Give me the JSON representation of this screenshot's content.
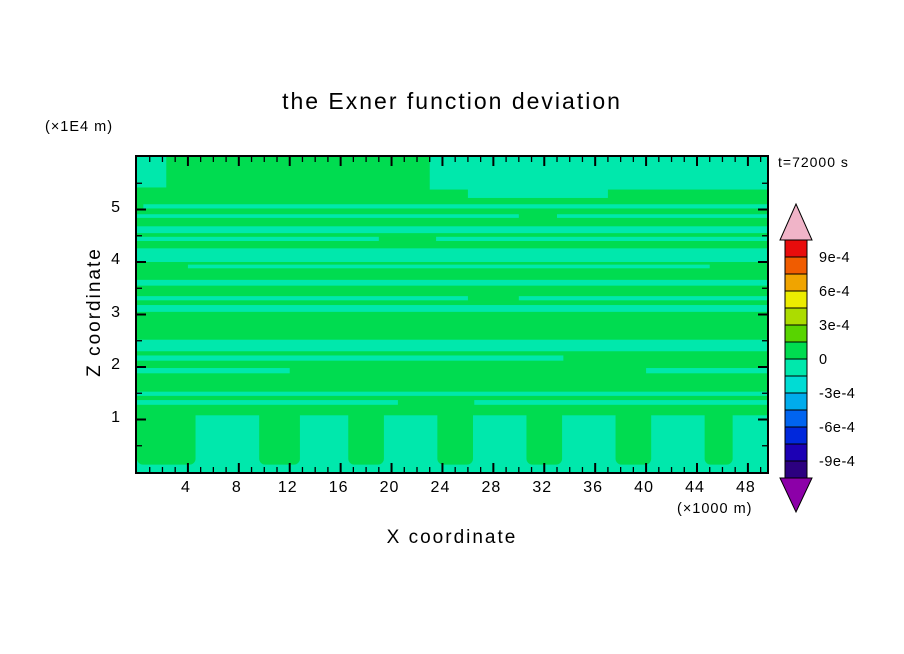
{
  "title": "the Exner function deviation",
  "time_label": "t=72000 s",
  "y_unit_label": "(×1E4 m)",
  "x_unit_label": "(×1000 m)",
  "x_axis_label": "X coordinate",
  "y_axis_label": "Z coordinate",
  "chart_data": {
    "type": "heatmap",
    "subtype": "filled-contour",
    "title": "the Exner function deviation",
    "time_annotation": "t=72000 s",
    "xlabel": "X coordinate",
    "ylabel": "Z coordinate",
    "x_unit": "×1000 m",
    "y_unit": "×1E4 m",
    "xlim": [
      0,
      49.5
    ],
    "ylim": [
      0,
      6
    ],
    "x_ticks": [
      4,
      8,
      12,
      16,
      20,
      24,
      28,
      32,
      36,
      40,
      44,
      48
    ],
    "y_ticks": [
      1,
      2,
      3,
      4,
      5
    ],
    "grid": false,
    "legend_position": "right-colorbar",
    "contour_interval": 0.00015,
    "field_note": "Exner function deviation is everywhere within -1.5e-4 .. +1.5e-4: green areas are the 0..+1.5e-4 band, mint areas are the -1.5e-4..0 band (horizontal wave layers aloft and a negative boundary layer below z=1 broken by positive columns).",
    "colors": {
      "positive": "#00dc50",
      "negative": "#00e8ac",
      "frame": "#000000",
      "background": "#ffffff"
    },
    "colorbar": {
      "labels": [
        "9e-4",
        "6e-4",
        "3e-4",
        "0",
        "-3e-4",
        "-6e-4",
        "-9e-4"
      ],
      "label_values": [
        0.0009,
        0.0006,
        0.0003,
        0,
        -0.0003,
        -0.0006,
        -0.0009
      ],
      "band_colors_top_to_bottom": [
        "#e80c0c",
        "#f05c00",
        "#f0a400",
        "#ecec00",
        "#acdc00",
        "#58d400",
        "#00dc50",
        "#00e8ac",
        "#00dcd4",
        "#00acec",
        "#0064f0",
        "#0028dc",
        "#1c00b4",
        "#2c0080"
      ],
      "arrow_top_color": "#f0b4c8",
      "arrow_bottom_color": "#8c00a8"
    },
    "negative_regions": [
      {
        "x0": 0,
        "x1": 2.3,
        "z0": 5.42,
        "z1": 6.0
      },
      {
        "x0": 23,
        "x1": 49.5,
        "z0": 5.38,
        "z1": 6.0
      },
      {
        "x0": 26,
        "x1": 37,
        "z0": 5.22,
        "z1": 5.45
      },
      {
        "x0": 0.5,
        "x1": 49.5,
        "z0": 5.02,
        "z1": 5.1
      },
      {
        "x0": 0,
        "x1": 30,
        "z0": 4.84,
        "z1": 4.91
      },
      {
        "x0": 33,
        "x1": 49.5,
        "z0": 4.84,
        "z1": 4.91
      },
      {
        "x0": 0,
        "x1": 49.5,
        "z0": 4.55,
        "z1": 4.68
      },
      {
        "x0": 0,
        "x1": 19,
        "z0": 4.4,
        "z1": 4.48
      },
      {
        "x0": 23.5,
        "x1": 49.5,
        "z0": 4.4,
        "z1": 4.48
      },
      {
        "x0": 0,
        "x1": 49.5,
        "z0": 4.0,
        "z1": 4.26
      },
      {
        "x0": 4,
        "x1": 45,
        "z0": 3.88,
        "z1": 3.95
      },
      {
        "x0": 0,
        "x1": 49.5,
        "z0": 3.55,
        "z1": 3.66
      },
      {
        "x0": 0,
        "x1": 26,
        "z0": 3.27,
        "z1": 3.35
      },
      {
        "x0": 30,
        "x1": 49.5,
        "z0": 3.27,
        "z1": 3.35
      },
      {
        "x0": 0,
        "x1": 49.5,
        "z0": 3.05,
        "z1": 3.18
      },
      {
        "x0": 0,
        "x1": 49.5,
        "z0": 2.3,
        "z1": 2.52
      },
      {
        "x0": 0,
        "x1": 33.5,
        "z0": 2.12,
        "z1": 2.22
      },
      {
        "x0": 0,
        "x1": 12,
        "z0": 1.88,
        "z1": 1.98
      },
      {
        "x0": 40,
        "x1": 49.5,
        "z0": 1.88,
        "z1": 1.98
      },
      {
        "x0": 0,
        "x1": 49.5,
        "z0": 1.45,
        "z1": 1.53
      },
      {
        "x0": 0,
        "x1": 20.5,
        "z0": 1.28,
        "z1": 1.37
      },
      {
        "x0": 26.5,
        "x1": 49.5,
        "z0": 1.28,
        "z1": 1.37
      }
    ],
    "bottom_layer": {
      "x0": 0,
      "x1": 49.5,
      "z0": 0,
      "z1": 1.08
    },
    "positive_columns": [
      {
        "x0": 0,
        "x1": 4.6,
        "z0": 0.14,
        "z1": 1.2
      },
      {
        "x0": 9.6,
        "x1": 12.8,
        "z0": 0.14,
        "z1": 1.2
      },
      {
        "x0": 16.6,
        "x1": 19.4,
        "z0": 0.14,
        "z1": 1.2
      },
      {
        "x0": 23.6,
        "x1": 26.4,
        "z0": 0.14,
        "z1": 1.2
      },
      {
        "x0": 30.6,
        "x1": 33.4,
        "z0": 0.14,
        "z1": 1.2
      },
      {
        "x0": 37.6,
        "x1": 40.4,
        "z0": 0.14,
        "z1": 1.2
      },
      {
        "x0": 44.6,
        "x1": 46.8,
        "z0": 0.14,
        "z1": 1.2
      }
    ]
  }
}
